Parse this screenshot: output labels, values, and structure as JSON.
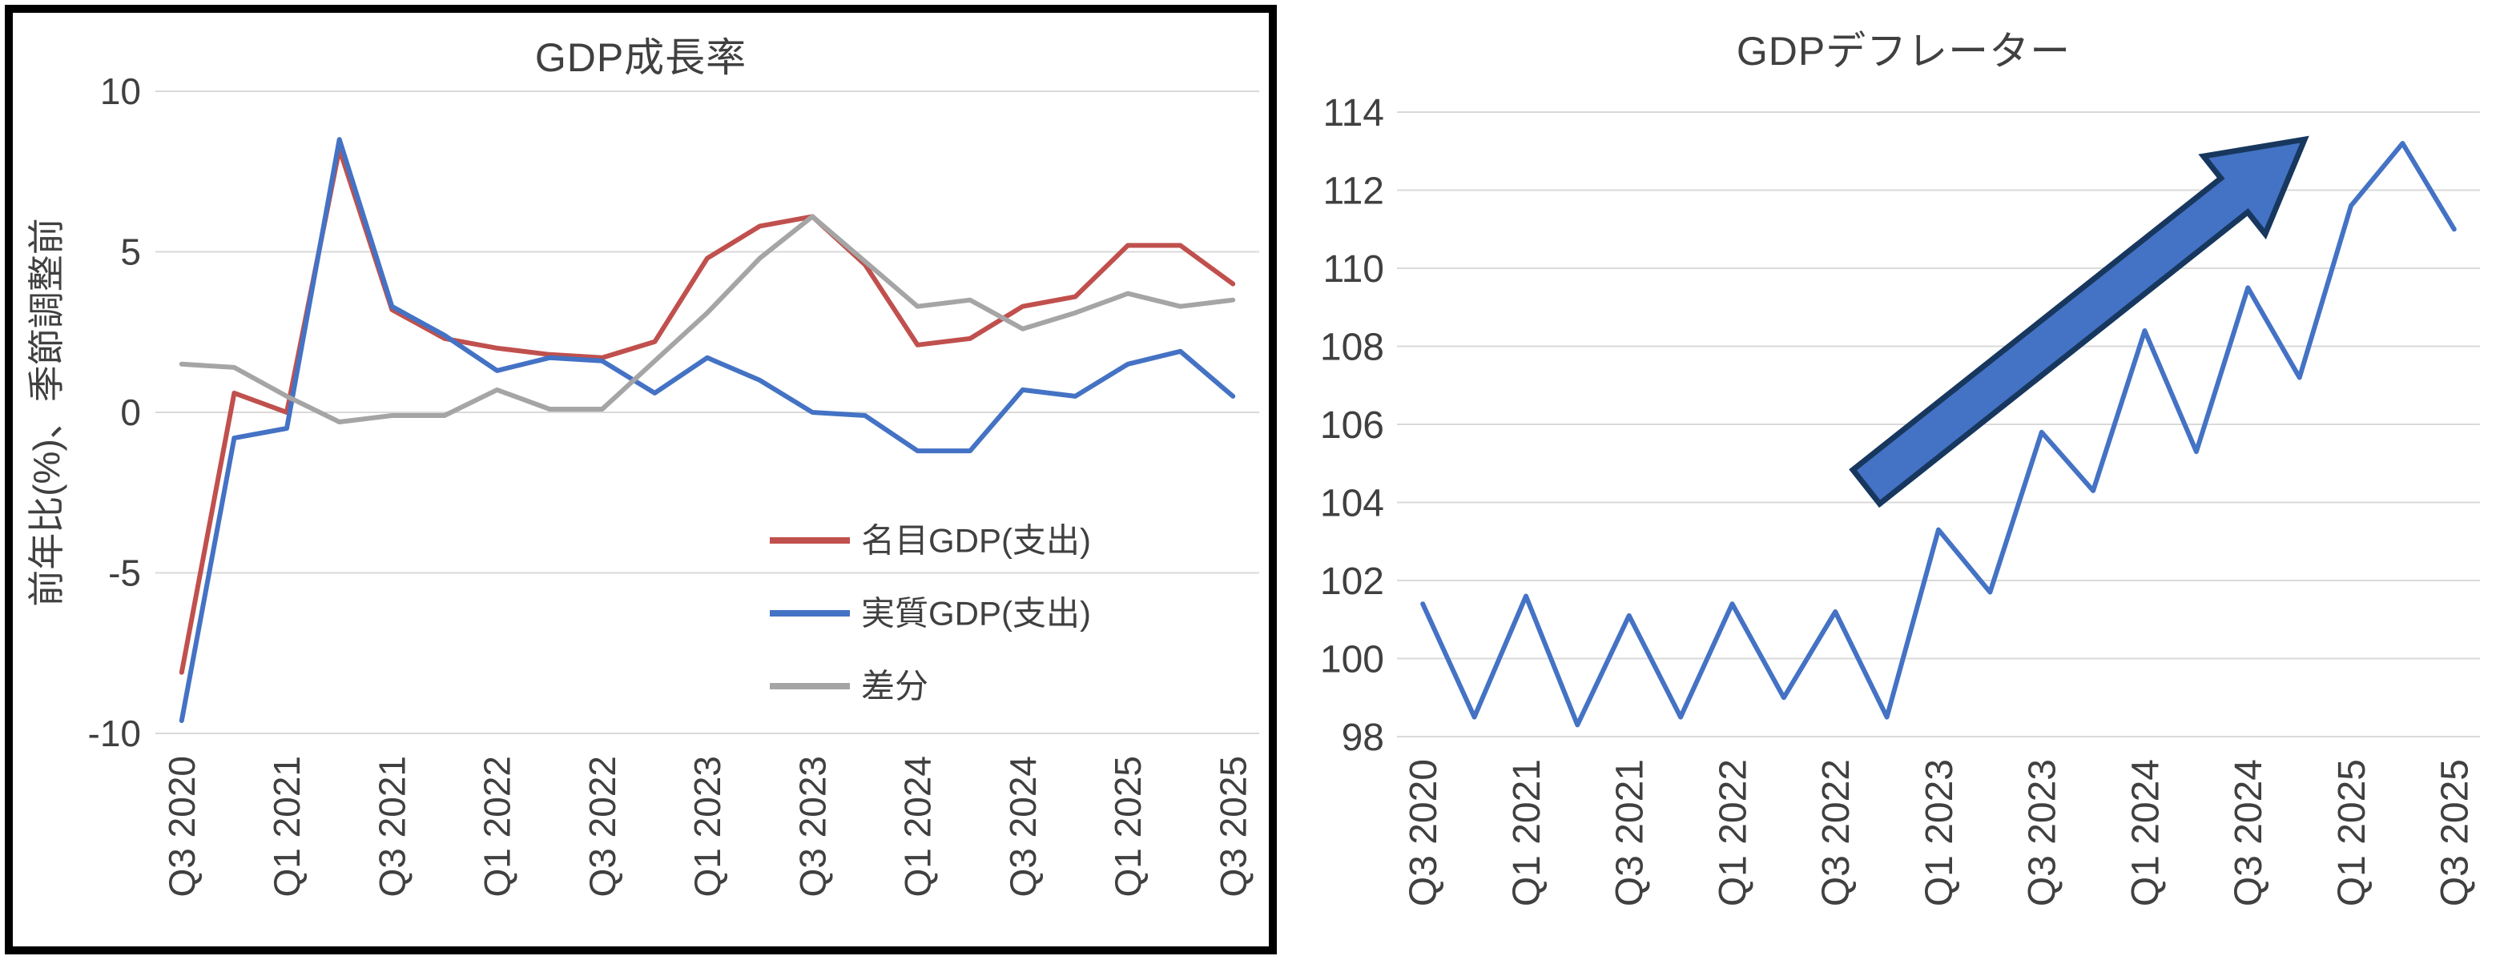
{
  "chart_data": [
    {
      "type": "line",
      "title": "GDP成長率",
      "ylabel": "前年比(%)、季節調整前",
      "categories": [
        "Q3 2020",
        "Q4 2020",
        "Q1 2021",
        "Q2 2021",
        "Q3 2021",
        "Q4 2021",
        "Q1 2022",
        "Q2 2022",
        "Q3 2022",
        "Q4 2022",
        "Q1 2023",
        "Q2 2023",
        "Q3 2023",
        "Q4 2023",
        "Q1 2024",
        "Q2 2024",
        "Q3 2024",
        "Q4 2024",
        "Q1 2025",
        "Q2 2025",
        "Q3 2025"
      ],
      "x_tick_labels": [
        "Q3 2020",
        "Q1 2021",
        "Q3 2021",
        "Q1 2022",
        "Q3 2022",
        "Q1 2023",
        "Q3 2023",
        "Q1 2024",
        "Q3 2024",
        "Q1 2025",
        "Q3 2025"
      ],
      "ylim": [
        -10,
        10
      ],
      "yticks": [
        -10,
        -5,
        0,
        5,
        10
      ],
      "grid": true,
      "legend_position": "inside-right",
      "frame_color": "#000000",
      "grid_color": "#D9D9D9",
      "series": [
        {
          "name": "名目GDP(支出)",
          "color": "#C0504D",
          "values": [
            -8.1,
            0.6,
            0.0,
            8.2,
            3.2,
            2.3,
            2.0,
            1.8,
            1.7,
            2.2,
            4.8,
            5.8,
            6.1,
            4.6,
            2.1,
            2.3,
            3.3,
            3.6,
            5.2,
            5.2,
            4.0
          ]
        },
        {
          "name": "実質GDP(支出)",
          "color": "#4472C4",
          "values": [
            -9.6,
            -0.8,
            -0.5,
            8.5,
            3.3,
            2.4,
            1.3,
            1.7,
            1.6,
            0.6,
            1.7,
            1.0,
            0.0,
            -0.1,
            -1.2,
            -1.2,
            0.7,
            0.5,
            1.5,
            1.9,
            0.5
          ]
        },
        {
          "name": "差分",
          "color": "#A5A5A5",
          "values": [
            1.5,
            1.4,
            0.5,
            -0.3,
            -0.1,
            -0.1,
            0.7,
            0.1,
            0.1,
            1.6,
            3.1,
            4.8,
            6.1,
            4.7,
            3.3,
            3.5,
            2.6,
            3.1,
            3.7,
            3.3,
            3.5
          ]
        }
      ]
    },
    {
      "type": "line",
      "title": "GDPデフレーター",
      "categories": [
        "Q3 2020",
        "Q4 2020",
        "Q1 2021",
        "Q2 2021",
        "Q3 2021",
        "Q4 2021",
        "Q1 2022",
        "Q2 2022",
        "Q3 2022",
        "Q4 2022",
        "Q1 2023",
        "Q2 2023",
        "Q3 2023",
        "Q4 2023",
        "Q1 2024",
        "Q2 2024",
        "Q3 2024",
        "Q4 2024",
        "Q1 2025",
        "Q2 2025",
        "Q3 2025"
      ],
      "x_tick_labels": [
        "Q3 2020",
        "Q1 2021",
        "Q3 2021",
        "Q1 2022",
        "Q3 2022",
        "Q1 2023",
        "Q3 2023",
        "Q1 2024",
        "Q3 2024",
        "Q1 2025",
        "Q3 2025"
      ],
      "ylim": [
        98,
        114
      ],
      "yticks": [
        98,
        100,
        102,
        104,
        106,
        108,
        110,
        112,
        114
      ],
      "grid": true,
      "grid_color": "#D9D9D9",
      "series": [
        {
          "name": "GDPデフレーター",
          "color": "#4472C4",
          "values": [
            101.4,
            98.5,
            101.6,
            98.3,
            101.1,
            98.5,
            101.4,
            99.0,
            101.2,
            98.5,
            103.3,
            101.7,
            105.8,
            104.3,
            108.4,
            105.3,
            109.5,
            107.2,
            111.6,
            113.2,
            111.0
          ]
        }
      ],
      "annotation_arrow": {
        "from": [
          8.6,
          104.4
        ],
        "to": [
          17.1,
          113.3
        ],
        "fill": "#4472C4",
        "border": "#17375E"
      }
    }
  ]
}
